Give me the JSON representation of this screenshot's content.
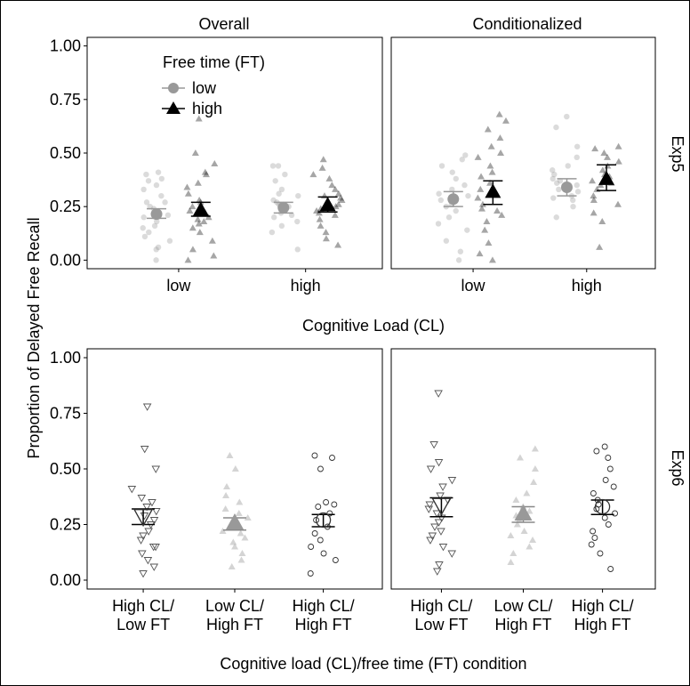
{
  "chart_data": [
    {
      "type": "scatter",
      "row_strip": "Exp5",
      "xlabel": "Cognitive Load (CL)",
      "ylabel": "Proportion of Delayed Free Recall",
      "ylim": [
        -0.04,
        1.04
      ],
      "yticks": [
        "0.00",
        "0.25",
        "0.50",
        "0.75",
        "1.00"
      ],
      "categories": [
        "low",
        "high"
      ],
      "legend": {
        "title": "Free time (FT)",
        "placement": "top-left",
        "entries": [
          {
            "label": "low",
            "color": "#999999",
            "shape": "circle"
          },
          {
            "label": "high",
            "color": "#000000",
            "shape": "triangle"
          }
        ]
      },
      "panels": [
        {
          "strip": "Overall",
          "series": [
            {
              "name": "low",
              "color": "#999999",
              "means": [
                0.215,
                0.245
              ],
              "ci_lower": [
                0.195,
                0.22
              ],
              "ci_upper": [
                0.24,
                0.27
              ],
              "points": [
                [
                  0.05,
                  0.06,
                  0.11,
                  0.13,
                  0.16,
                  0.18,
                  0.2,
                  0.21,
                  0.22,
                  0.24,
                  0.25,
                  0.27,
                  0.3,
                  0.33,
                  0.35,
                  0.37,
                  0.38,
                  0.4,
                  0.41,
                  0.0,
                  0.27,
                  0.15,
                  0.09
                ],
                [
                  0.05,
                  0.13,
                  0.16,
                  0.18,
                  0.2,
                  0.22,
                  0.23,
                  0.25,
                  0.27,
                  0.28,
                  0.3,
                  0.33,
                  0.37,
                  0.4,
                  0.44,
                  0.44,
                  0.21,
                  0.26,
                  0.31
                ]
              ]
            },
            {
              "name": "high",
              "color": "#000000",
              "means": [
                0.235,
                0.258
              ],
              "ci_lower": [
                0.205,
                0.225
              ],
              "ci_upper": [
                0.27,
                0.295
              ],
              "points": [
                [
                  0.0,
                  0.02,
                  0.05,
                  0.09,
                  0.13,
                  0.15,
                  0.18,
                  0.19,
                  0.2,
                  0.22,
                  0.23,
                  0.25,
                  0.28,
                  0.31,
                  0.34,
                  0.36,
                  0.4,
                  0.41,
                  0.45,
                  0.5,
                  0.66,
                  0.27,
                  0.17
                ],
                [
                  0.07,
                  0.1,
                  0.13,
                  0.16,
                  0.19,
                  0.21,
                  0.23,
                  0.24,
                  0.25,
                  0.26,
                  0.28,
                  0.29,
                  0.31,
                  0.33,
                  0.35,
                  0.38,
                  0.4,
                  0.43,
                  0.47,
                  0.22,
                  0.3
                ]
              ]
            }
          ]
        },
        {
          "strip": "Conditionalized",
          "series": [
            {
              "name": "low",
              "color": "#999999",
              "means": [
                0.285,
                0.34
              ],
              "ci_lower": [
                0.25,
                0.3
              ],
              "ci_upper": [
                0.32,
                0.38
              ],
              "points": [
                [
                  0.0,
                  0.04,
                  0.09,
                  0.14,
                  0.17,
                  0.2,
                  0.23,
                  0.26,
                  0.28,
                  0.3,
                  0.33,
                  0.35,
                  0.38,
                  0.41,
                  0.44,
                  0.47,
                  0.49,
                  0.25,
                  0.31
                ],
                [
                  0.2,
                  0.25,
                  0.28,
                  0.3,
                  0.32,
                  0.33,
                  0.35,
                  0.36,
                  0.38,
                  0.4,
                  0.42,
                  0.44,
                  0.48,
                  0.53,
                  0.62,
                  0.67,
                  0.29,
                  0.37
                ]
              ]
            },
            {
              "name": "high",
              "color": "#000000",
              "means": [
                0.32,
                0.38
              ],
              "ci_lower": [
                0.26,
                0.325
              ],
              "ci_upper": [
                0.37,
                0.445
              ],
              "points": [
                [
                  0.0,
                  0.03,
                  0.08,
                  0.14,
                  0.18,
                  0.21,
                  0.24,
                  0.26,
                  0.29,
                  0.31,
                  0.33,
                  0.36,
                  0.39,
                  0.41,
                  0.44,
                  0.48,
                  0.5,
                  0.53,
                  0.57,
                  0.61,
                  0.65,
                  0.68,
                  0.23
                ],
                [
                  0.06,
                  0.18,
                  0.22,
                  0.26,
                  0.28,
                  0.3,
                  0.33,
                  0.35,
                  0.37,
                  0.39,
                  0.4,
                  0.42,
                  0.44,
                  0.46,
                  0.48,
                  0.5,
                  0.52,
                  0.53,
                  0.36
                ]
              ]
            }
          ]
        }
      ]
    },
    {
      "type": "scatter",
      "row_strip": "Exp6",
      "xlabel": "Cognitive load (CL)/free time (FT) condition",
      "ylabel": "Proportion of Delayed Free Recall",
      "ylim": [
        -0.04,
        1.04
      ],
      "yticks": [
        "0.00",
        "0.25",
        "0.50",
        "0.75",
        "1.00"
      ],
      "categories": [
        "High CL/\nLow FT",
        "Low CL/\nHigh FT",
        "High CL/\nHigh FT"
      ],
      "panels": [
        {
          "strip": "",
          "groups": [
            {
              "category": "High CL/\nLow FT",
              "shape": "triangle-down-open",
              "color": "#555555",
              "mean": 0.285,
              "ci_lower": 0.25,
              "ci_upper": 0.32,
              "points": [
                0.03,
                0.06,
                0.09,
                0.12,
                0.15,
                0.15,
                0.18,
                0.2,
                0.22,
                0.25,
                0.27,
                0.29,
                0.31,
                0.33,
                0.35,
                0.37,
                0.41,
                0.5,
                0.59,
                0.78
              ]
            },
            {
              "category": "Low CL/\nHigh FT",
              "shape": "triangle-filled",
              "color": "#aaaaaa",
              "mean": 0.26,
              "ci_lower": 0.225,
              "ci_upper": 0.28,
              "points": [
                0.06,
                0.09,
                0.12,
                0.15,
                0.17,
                0.19,
                0.21,
                0.22,
                0.24,
                0.26,
                0.28,
                0.3,
                0.32,
                0.35,
                0.38,
                0.42,
                0.5,
                0.56
              ]
            },
            {
              "category": "High CL/\nHigh FT",
              "shape": "circle-open",
              "color": "#333333",
              "mean": 0.27,
              "ci_lower": 0.24,
              "ci_upper": 0.295,
              "points": [
                0.03,
                0.09,
                0.12,
                0.15,
                0.18,
                0.21,
                0.24,
                0.27,
                0.3,
                0.33,
                0.34,
                0.35,
                0.5,
                0.55,
                0.56
              ]
            }
          ]
        },
        {
          "strip": "",
          "groups": [
            {
              "category": "High CL/\nLow FT",
              "shape": "triangle-down-open",
              "color": "#555555",
              "mean": 0.335,
              "ci_lower": 0.285,
              "ci_upper": 0.37,
              "points": [
                0.04,
                0.07,
                0.12,
                0.15,
                0.18,
                0.2,
                0.22,
                0.24,
                0.26,
                0.28,
                0.3,
                0.32,
                0.34,
                0.36,
                0.38,
                0.42,
                0.45,
                0.5,
                0.53,
                0.61,
                0.84
              ]
            },
            {
              "category": "Low CL/\nHigh FT",
              "shape": "triangle-filled",
              "color": "#aaaaaa",
              "mean": 0.3,
              "ci_lower": 0.26,
              "ci_upper": 0.33,
              "points": [
                0.08,
                0.12,
                0.15,
                0.18,
                0.2,
                0.22,
                0.25,
                0.27,
                0.29,
                0.31,
                0.33,
                0.36,
                0.39,
                0.44,
                0.5,
                0.55,
                0.59
              ]
            },
            {
              "category": "High CL/\nHigh FT",
              "shape": "circle-open",
              "color": "#333333",
              "mean": 0.33,
              "ci_lower": 0.295,
              "ci_upper": 0.36,
              "points": [
                0.05,
                0.12,
                0.16,
                0.19,
                0.22,
                0.25,
                0.28,
                0.3,
                0.32,
                0.34,
                0.36,
                0.39,
                0.42,
                0.45,
                0.5,
                0.55,
                0.58,
                0.6
              ]
            }
          ]
        }
      ]
    }
  ]
}
